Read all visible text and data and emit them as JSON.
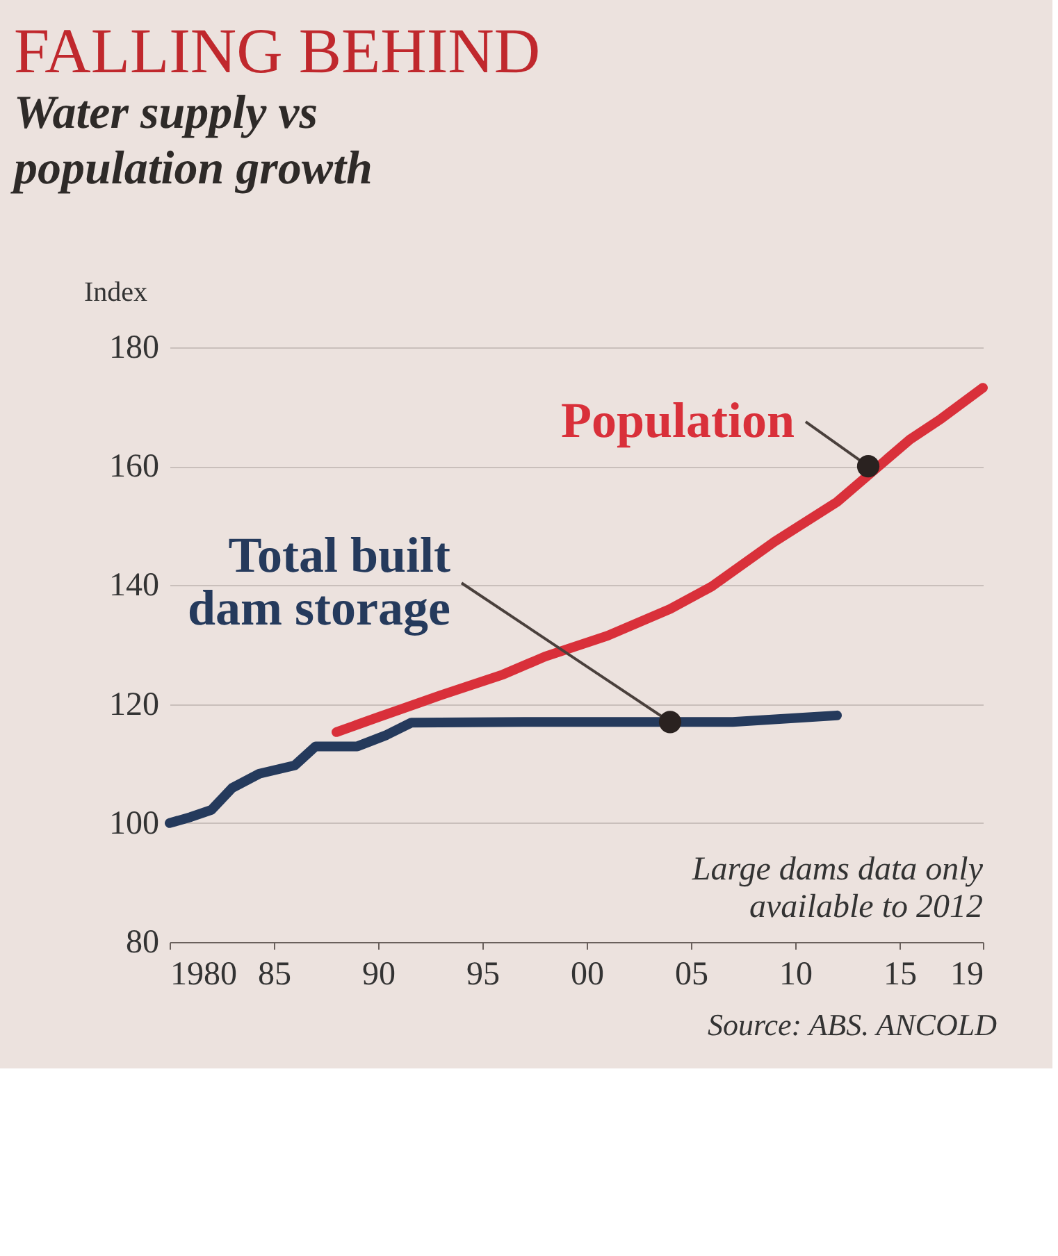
{
  "chart_data": {
    "type": "line",
    "title": "FALLING BEHIND",
    "subtitle": "Water supply vs population growth",
    "ylabel": "Index",
    "series": [
      {
        "color": "#d9303a",
        "x": [
          1988,
          1990,
          1993,
          1996,
          1998,
          2001,
          2004,
          2006,
          2009,
          2012,
          2015.5,
          2017,
          2019
        ],
        "values": [
          115.3,
          117.8,
          121.5,
          125,
          128,
          131.5,
          136,
          139.8,
          147.3,
          154,
          164.5,
          168,
          173.2
        ]
      },
      {
        "color": "#253a5c",
        "x": [
          1980,
          1981,
          1982,
          1983,
          1984.3,
          1986,
          1987,
          1989,
          1990.4,
          1991.6,
          1997,
          2007,
          2012
        ],
        "values": [
          100,
          101,
          102.2,
          105.9,
          108.3,
          109.7,
          112.9,
          112.9,
          114.8,
          116.9,
          117,
          117,
          118.1
        ]
      }
    ],
    "annotations": [
      {
        "text": "Population",
        "x": 2013.5,
        "y": 160
      },
      {
        "text": "Total built dam storage",
        "x": 2004,
        "y": 117
      },
      "Large dams data only available to 2012",
      "Source: ABS. ANCOLD"
    ],
    "xlim": [
      1980,
      2019
    ],
    "xticks": [
      1980,
      {
        "value": 1985,
        "label": "85"
      },
      {
        "value": 1990,
        "label": "90"
      },
      {
        "value": 1995,
        "label": "95"
      },
      {
        "value": 2000,
        "label": "00"
      },
      {
        "value": 2005,
        "label": "05"
      },
      {
        "value": 2010,
        "label": "10"
      },
      {
        "value": 2015,
        "label": "15"
      },
      {
        "value": 2019,
        "label": "19"
      }
    ],
    "ylim": [
      80,
      180
    ],
    "yticks": [
      80,
      100,
      120,
      140,
      160,
      180
    ],
    "grid": "y",
    "line_style": "solid"
  }
}
